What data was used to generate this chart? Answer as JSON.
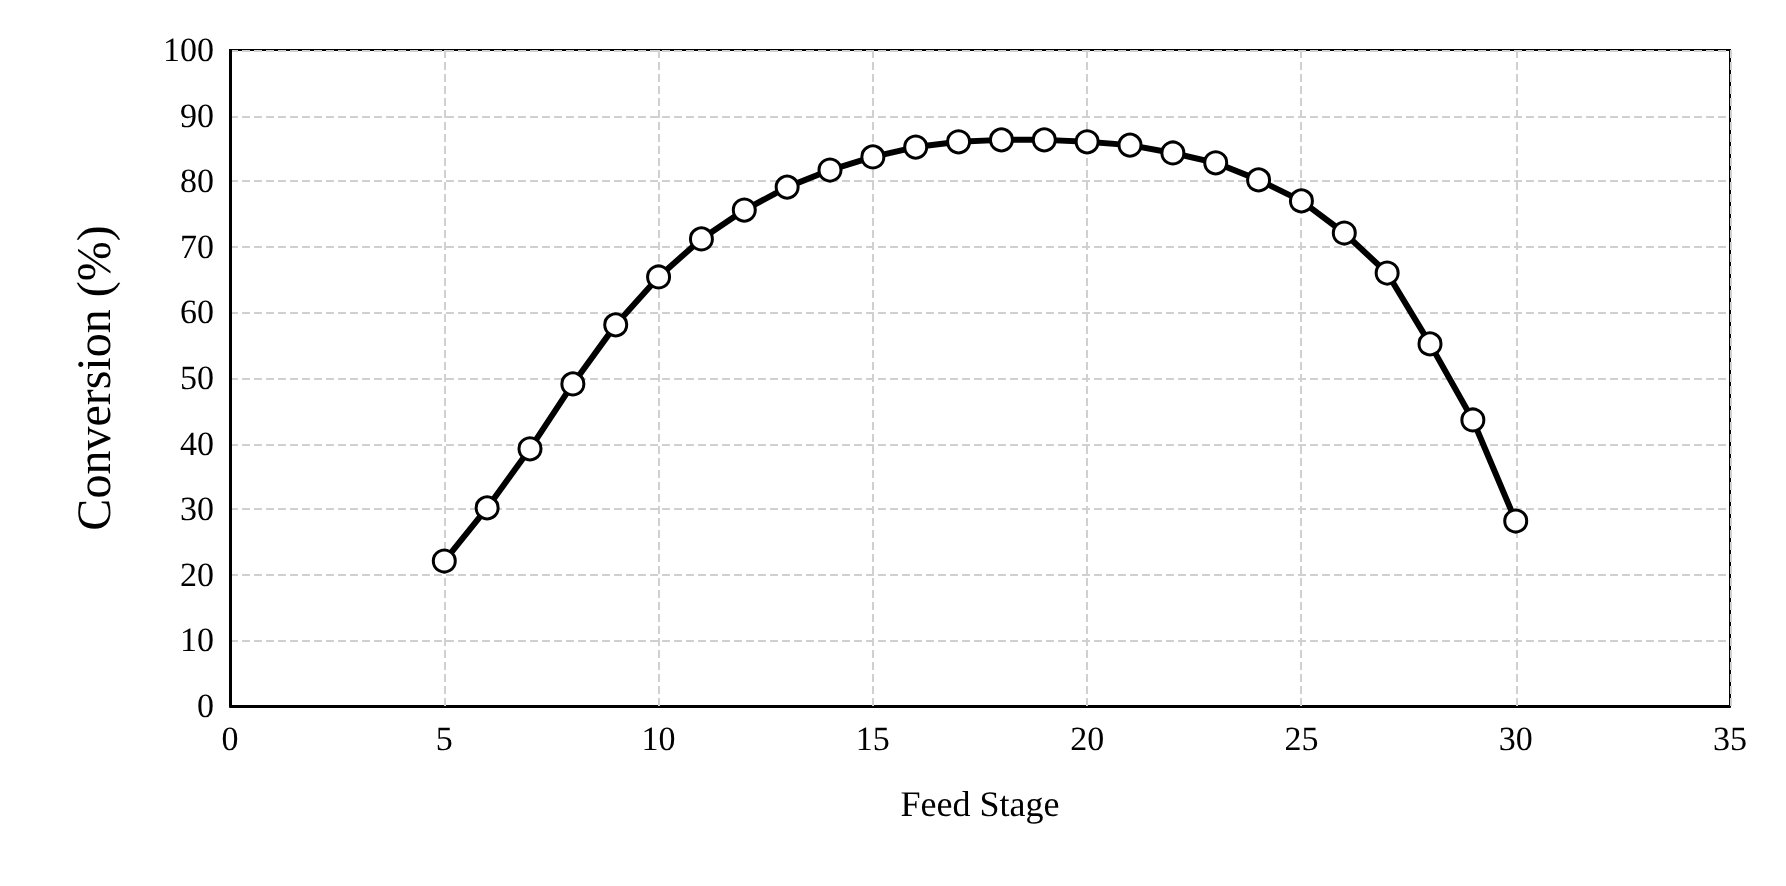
{
  "chart_data": {
    "type": "line",
    "xlabel": "Feed Stage",
    "ylabel": "Conversion (%)",
    "x": [
      5,
      6,
      7,
      8,
      9,
      10,
      11,
      12,
      13,
      14,
      15,
      16,
      17,
      18,
      19,
      20,
      21,
      22,
      23,
      24,
      25,
      26,
      27,
      28,
      29,
      30
    ],
    "series": [
      {
        "color": "#000000",
        "values": [
          22.1,
          30.2,
          39.2,
          49.1,
          58.1,
          65.4,
          71.2,
          75.6,
          79.1,
          81.7,
          83.7,
          85.2,
          86.0,
          86.3,
          86.3,
          86.0,
          85.5,
          84.3,
          82.8,
          80.2,
          77.0,
          72.1,
          66.0,
          55.2,
          43.6,
          28.2
        ]
      }
    ],
    "xlim": [
      0,
      35
    ],
    "xticks": [
      0,
      5,
      10,
      15,
      20,
      25,
      30,
      35
    ],
    "ylim": [
      0,
      100
    ],
    "yticks": [
      0,
      10,
      20,
      30,
      40,
      50,
      60,
      70,
      80,
      90,
      100
    ],
    "grid": true,
    "marker": "circle",
    "line_style": "solid"
  }
}
